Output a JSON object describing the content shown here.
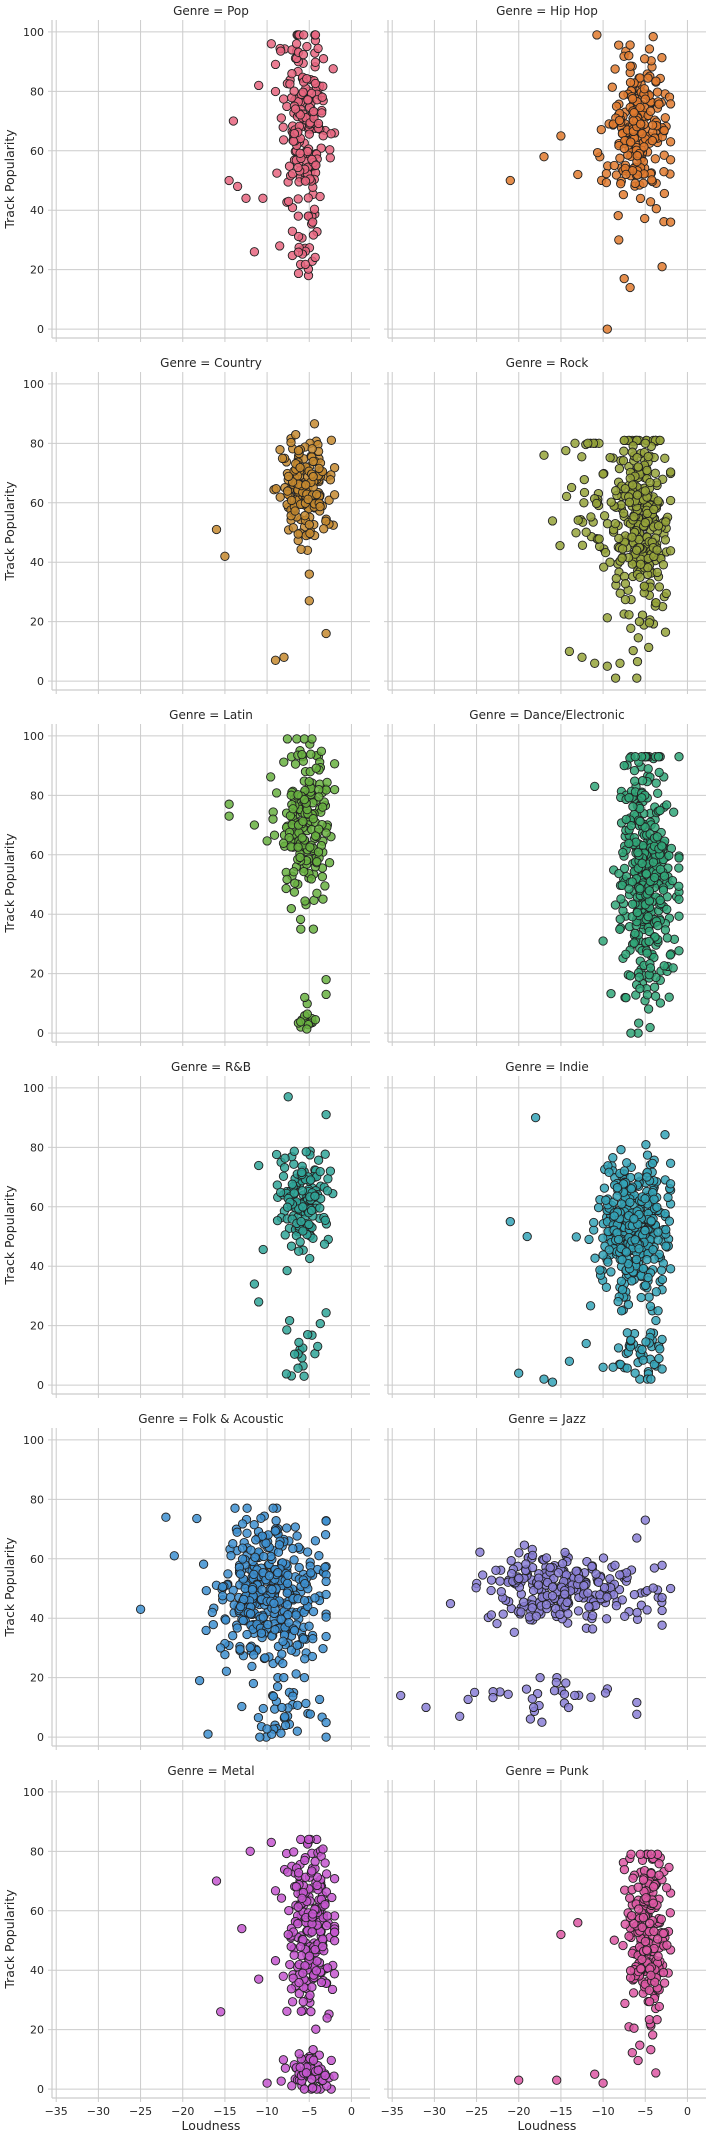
{
  "chart_data": {
    "type": "scatter",
    "xlabel": "Loudness",
    "ylabel": "Track Popularity",
    "xlim": [
      -35.5,
      2.2
    ],
    "ylim": [
      -3,
      104
    ],
    "xticks": [
      -35,
      -30,
      -25,
      -20,
      -15,
      -10,
      -5,
      0
    ],
    "yticks": [
      0,
      20,
      40,
      60,
      80,
      100
    ],
    "grid": true,
    "panels": [
      {
        "title": "Genre = Pop",
        "color": "#e8657f",
        "clusters": [
          {
            "n": 190,
            "cx": -5.5,
            "sx": 1.5,
            "cy": 70,
            "sy": 16,
            "xmin": -9,
            "xmax": -2,
            "ymin": 38,
            "ymax": 99
          },
          {
            "n": 22,
            "cx": -5.2,
            "sx": 0.9,
            "cy": 27,
            "sy": 6,
            "xmin": -7,
            "xmax": -3,
            "ymin": 18,
            "ymax": 36
          }
        ],
        "outliers": [
          [
            -14.5,
            50
          ],
          [
            -13.5,
            48
          ],
          [
            -12.5,
            44
          ],
          [
            -10.5,
            44
          ],
          [
            -14,
            70
          ],
          [
            -11.5,
            26
          ],
          [
            -8.5,
            28
          ],
          [
            -11,
            82
          ],
          [
            -9.5,
            96
          ],
          [
            -6.5,
            96
          ]
        ]
      },
      {
        "title": "Genre = Hip Hop",
        "color": "#e07a2e",
        "clusters": [
          {
            "n": 230,
            "cx": -6.0,
            "sx": 1.7,
            "cy": 66,
            "sy": 13,
            "xmin": -11,
            "xmax": -2,
            "ymin": 30,
            "ymax": 99
          }
        ],
        "outliers": [
          [
            -21,
            50
          ],
          [
            -17,
            58
          ],
          [
            -13,
            52
          ],
          [
            -15,
            65
          ],
          [
            -7.5,
            17
          ],
          [
            -6.8,
            14
          ],
          [
            -3,
            21
          ],
          [
            -9.5,
            0
          ],
          [
            -2,
            36
          ]
        ]
      },
      {
        "title": "Genre = Country",
        "color": "#c68a2f",
        "clusters": [
          {
            "n": 180,
            "cx": -5.5,
            "sx": 1.5,
            "cy": 64,
            "sy": 9,
            "xmin": -10,
            "xmax": -2,
            "ymin": 44,
            "ymax": 91
          }
        ],
        "outliers": [
          [
            -16,
            51
          ],
          [
            -15,
            42
          ],
          [
            -9,
            7
          ],
          [
            -8,
            8
          ],
          [
            -5,
            27
          ],
          [
            -3,
            16
          ],
          [
            -5,
            36
          ]
        ]
      },
      {
        "title": "Genre = Rock",
        "color": "#95a33a",
        "clusters": [
          {
            "n": 300,
            "cx": -5.3,
            "sx": 1.6,
            "cy": 55,
            "sy": 17,
            "xmin": -10,
            "xmax": -2,
            "ymin": 1,
            "ymax": 81
          },
          {
            "n": 60,
            "cx": -10,
            "sx": 2.8,
            "cy": 62,
            "sy": 12,
            "xmin": -16,
            "xmax": -5,
            "ymin": 40,
            "ymax": 80
          }
        ],
        "outliers": [
          [
            -17,
            76
          ],
          [
            -14,
            10
          ],
          [
            -12.5,
            8
          ],
          [
            -11,
            6
          ],
          [
            -9.5,
            5
          ],
          [
            -8,
            6
          ],
          [
            -6,
            1
          ]
        ]
      },
      {
        "title": "Genre = Latin",
        "color": "#67b040",
        "clusters": [
          {
            "n": 210,
            "cx": -5.3,
            "sx": 1.6,
            "cy": 70,
            "sy": 13,
            "xmin": -10,
            "xmax": -2,
            "ymin": 35,
            "ymax": 99
          },
          {
            "n": 16,
            "cx": -5,
            "sx": 0.8,
            "cy": 5,
            "sy": 3,
            "xmin": -7,
            "xmax": -3,
            "ymin": 0,
            "ymax": 12
          }
        ],
        "outliers": [
          [
            -14.5,
            77
          ],
          [
            -14.5,
            73
          ],
          [
            -11.5,
            70
          ],
          [
            -6,
            35
          ],
          [
            -3,
            18
          ],
          [
            -3,
            13
          ]
        ]
      },
      {
        "title": "Genre = Dance/Electronic",
        "color": "#30a678",
        "clusters": [
          {
            "n": 400,
            "cx": -5.0,
            "sx": 1.5,
            "cy": 52,
            "sy": 21,
            "xmin": -10,
            "xmax": -1,
            "ymin": 0,
            "ymax": 93
          }
        ],
        "outliers": [
          [
            -11,
            83
          ],
          [
            -10,
            31
          ],
          [
            -7.5,
            90
          ],
          [
            -1,
            45
          ]
        ]
      },
      {
        "title": "Genre = R&B",
        "color": "#2fa598",
        "clusters": [
          {
            "n": 160,
            "cx": -6.0,
            "sx": 1.6,
            "cy": 62,
            "sy": 9,
            "xmin": -11,
            "xmax": -2,
            "ymin": 36,
            "ymax": 97
          },
          {
            "n": 18,
            "cx": -6,
            "sx": 1.5,
            "cy": 12,
            "sy": 6,
            "xmin": -10,
            "xmax": -3,
            "ymin": 3,
            "ymax": 29
          }
        ],
        "outliers": [
          [
            -11.5,
            34
          ],
          [
            -11,
            28
          ],
          [
            -7.5,
            97
          ],
          [
            -3,
            91
          ],
          [
            -2.5,
            72
          ],
          [
            -4,
            13
          ]
        ]
      },
      {
        "title": "Genre = Indie",
        "color": "#34a3b7",
        "clusters": [
          {
            "n": 420,
            "cx": -6.5,
            "sx": 2.0,
            "cy": 52,
            "sy": 11,
            "xmin": -15,
            "xmax": -2,
            "ymin": 25,
            "ymax": 97
          },
          {
            "n": 45,
            "cx": -5.5,
            "sx": 1.4,
            "cy": 12,
            "sy": 7,
            "xmin": -9,
            "xmax": -3,
            "ymin": 2,
            "ymax": 28
          }
        ],
        "outliers": [
          [
            -21,
            55
          ],
          [
            -19,
            50
          ],
          [
            -18,
            90
          ],
          [
            -20,
            4
          ],
          [
            -17,
            2
          ],
          [
            -16,
            1
          ],
          [
            -14,
            8
          ],
          [
            -12,
            14
          ],
          [
            -10,
            6
          ]
        ]
      },
      {
        "title": "Genre = Folk & Acoustic",
        "color": "#3d8fd0",
        "clusters": [
          {
            "n": 400,
            "cx": -9.5,
            "sx": 3.2,
            "cy": 48,
            "sy": 12,
            "xmin": -21,
            "xmax": -3,
            "ymin": 10,
            "ymax": 77
          },
          {
            "n": 40,
            "cx": -7,
            "sx": 2.8,
            "cy": 8,
            "sy": 5,
            "xmin": -13,
            "xmax": -3,
            "ymin": 0,
            "ymax": 20
          }
        ],
        "outliers": [
          [
            -25,
            43
          ],
          [
            -22,
            74
          ],
          [
            -21,
            61
          ],
          [
            -18,
            19
          ],
          [
            -17,
            1
          ]
        ]
      },
      {
        "title": "Genre = Jazz",
        "color": "#8a7fd6",
        "clusters": [
          {
            "n": 260,
            "cx": -14,
            "sx": 5.5,
            "cy": 50,
            "sy": 6,
            "xmin": -30,
            "xmax": -3,
            "ymin": 34,
            "ymax": 66
          },
          {
            "n": 30,
            "cx": -17,
            "sx": 5,
            "cy": 13,
            "sy": 4,
            "xmin": -26,
            "xmax": -6,
            "ymin": 5,
            "ymax": 20
          }
        ],
        "outliers": [
          [
            -34,
            14
          ],
          [
            -31,
            10
          ],
          [
            -27,
            7
          ],
          [
            -2,
            50
          ],
          [
            -5,
            73
          ],
          [
            -6,
            67
          ]
        ]
      },
      {
        "title": "Genre = Metal",
        "color": "#c456cf",
        "clusters": [
          {
            "n": 220,
            "cx": -4.8,
            "sx": 1.4,
            "cy": 55,
            "sy": 14,
            "xmin": -9,
            "xmax": -2,
            "ymin": 20,
            "ymax": 84
          },
          {
            "n": 65,
            "cx": -5,
            "sx": 1.3,
            "cy": 5,
            "sy": 4,
            "xmin": -9,
            "xmax": -2,
            "ymin": 0,
            "ymax": 18
          }
        ],
        "outliers": [
          [
            -16,
            70
          ],
          [
            -15.5,
            26
          ],
          [
            -13,
            54
          ],
          [
            -12,
            80
          ],
          [
            -11,
            37
          ],
          [
            -10,
            2
          ],
          [
            -9.5,
            83
          ]
        ]
      },
      {
        "title": "Genre = Punk",
        "color": "#dd57a3",
        "clusters": [
          {
            "n": 240,
            "cx": -4.8,
            "sx": 1.2,
            "cy": 52,
            "sy": 17,
            "xmin": -9,
            "xmax": -2,
            "ymin": 0,
            "ymax": 79
          }
        ],
        "outliers": [
          [
            -20,
            3
          ],
          [
            -15.5,
            3
          ],
          [
            -15,
            52
          ],
          [
            -13,
            56
          ],
          [
            -11,
            5
          ],
          [
            -10,
            2
          ]
        ]
      }
    ]
  }
}
